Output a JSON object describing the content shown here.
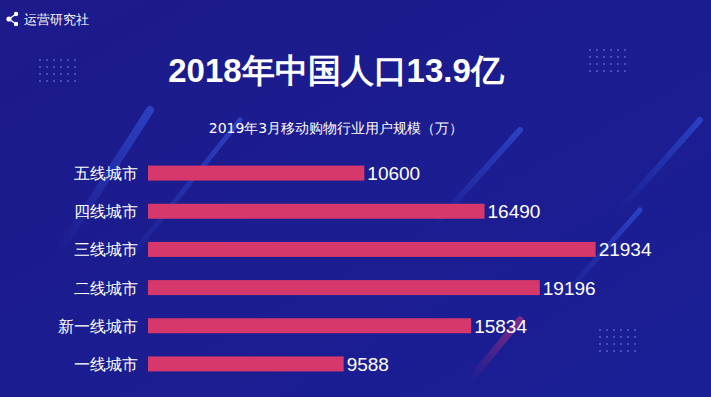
{
  "chart_data": {
    "type": "bar",
    "orientation": "horizontal",
    "title": "2018年中国人口13.9亿",
    "subtitle": "2019年3月移动购物行业用户规模（万）",
    "annotations": [
      "运营研究社"
    ],
    "categories": [
      "五线城市",
      "四线城市",
      "三线城市",
      "二线城市",
      "新一线城市",
      "一线城市"
    ],
    "values": [
      10600,
      16490,
      21934,
      19196,
      15834,
      9588
    ],
    "color": "#d6386b",
    "xlim": [
      0,
      22000
    ],
    "grid": false,
    "data_labels": true,
    "tick_labels": "y"
  }
}
